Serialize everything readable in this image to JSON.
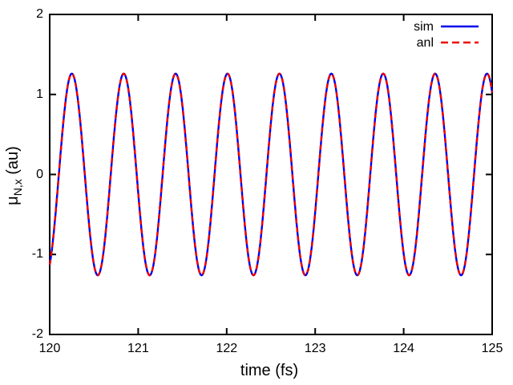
{
  "figure": {
    "background": "#ffffff",
    "border_color": "#000000",
    "text_color": "#000000"
  },
  "chart_data": {
    "type": "line",
    "title": "",
    "xlabel": "time (fs)",
    "ylabel": "μ_N,x (au)",
    "ylabel_parts": {
      "symbol": "μ",
      "subscript": "N,x",
      "unit": " (au)"
    },
    "xlim": [
      120,
      125
    ],
    "ylim": [
      -2,
      2
    ],
    "x_ticks": [
      "120",
      "121",
      "122",
      "123",
      "124",
      "125"
    ],
    "y_ticks": [
      "2",
      "1",
      "0",
      "-1",
      "-2"
    ],
    "grid": false,
    "ticks_mirrored_inward": true,
    "legend": {
      "position": "top-right-inside"
    },
    "series": [
      {
        "name": "sim",
        "color": "#0000ee",
        "line_style": "solid",
        "waveform": {
          "shape": "cosine",
          "amplitude_au": 1.26,
          "period_fs": 0.5865,
          "peak_time_fs": 120.25,
          "t_start_fs": 120,
          "t_end_fs": 125,
          "num_peaks_visible": 9
        }
      },
      {
        "name": "anl",
        "color": "#ee0000",
        "line_style": "dashed",
        "waveform": {
          "shape": "cosine",
          "amplitude_au": 1.26,
          "period_fs": 0.5865,
          "peak_time_fs": 120.25,
          "t_start_fs": 120,
          "t_end_fs": 125,
          "num_peaks_visible": 9
        }
      }
    ]
  }
}
